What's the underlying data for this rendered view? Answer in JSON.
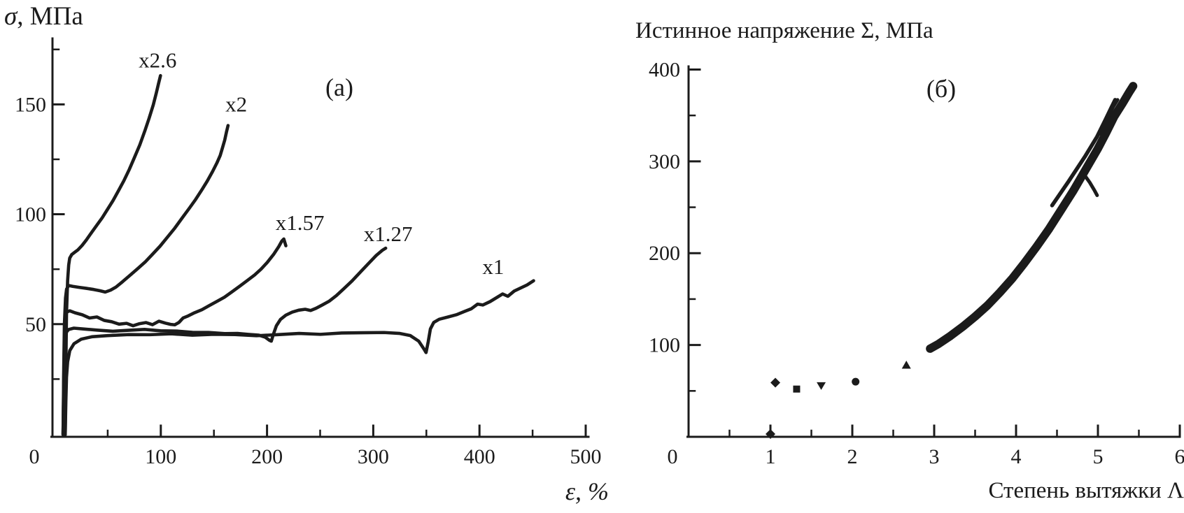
{
  "figure": {
    "background": "#ffffff",
    "ink": "#1b1b1b"
  },
  "chart_data": [
    {
      "panel": "(а)",
      "type": "line",
      "ylabel_symbol": "σ",
      "ylabel_rest": ", МПа",
      "xlabel_symbol": "ε",
      "xlabel_rest": ", %",
      "xlim": [
        0,
        500
      ],
      "ylim": [
        0,
        180
      ],
      "xticks": [
        0,
        100,
        200,
        300,
        400,
        500
      ],
      "xticks_minor": [
        50,
        150,
        250,
        350,
        450
      ],
      "yticks": [
        50,
        100,
        150
      ],
      "yticks_minor": [
        25,
        75,
        125,
        175
      ],
      "grid": false,
      "series": [
        {
          "name": "x2.6",
          "label_at": [
            97,
            170
          ],
          "points": [
            [
              10,
              0
            ],
            [
              10.5,
              30
            ],
            [
              11,
              55
            ],
            [
              12,
              70
            ],
            [
              13,
              77
            ],
            [
              14,
              80
            ],
            [
              16,
              81.5
            ],
            [
              19,
              82.5
            ],
            [
              22,
              83.5
            ],
            [
              26,
              85.5
            ],
            [
              30,
              88
            ],
            [
              35,
              91.5
            ],
            [
              40,
              95
            ],
            [
              45,
              98.5
            ],
            [
              50,
              102.5
            ],
            [
              55,
              106.5
            ],
            [
              60,
              111
            ],
            [
              65,
              115.5
            ],
            [
              70,
              120.5
            ],
            [
              75,
              126
            ],
            [
              80,
              131.5
            ],
            [
              85,
              138
            ],
            [
              89,
              143.5
            ],
            [
              93,
              149.5
            ],
            [
              96,
              155
            ],
            [
              98,
              159
            ],
            [
              100,
              163
            ]
          ]
        },
        {
          "name": "x2",
          "label_at": [
            171,
            150
          ],
          "points": [
            [
              8,
              0
            ],
            [
              8.5,
              30
            ],
            [
              9,
              50
            ],
            [
              10,
              62
            ],
            [
              11,
              66
            ],
            [
              13,
              67.5
            ],
            [
              17,
              67
            ],
            [
              23,
              66.5
            ],
            [
              30,
              66
            ],
            [
              37,
              65.5
            ],
            [
              43,
              65
            ],
            [
              48,
              64.5
            ],
            [
              53,
              65.5
            ],
            [
              58,
              67
            ],
            [
              64,
              69.5
            ],
            [
              71,
              72.5
            ],
            [
              78,
              75.5
            ],
            [
              85,
              78.5
            ],
            [
              92,
              82
            ],
            [
              99,
              85.5
            ],
            [
              106,
              89.5
            ],
            [
              113,
              93.5
            ],
            [
              120,
              98
            ],
            [
              127,
              102.5
            ],
            [
              133,
              106.5
            ],
            [
              139,
              111
            ],
            [
              144,
              115
            ],
            [
              149,
              119.5
            ],
            [
              153,
              123.5
            ],
            [
              156,
              127
            ],
            [
              158,
              130.5
            ],
            [
              160,
              134
            ],
            [
              161.5,
              137.5
            ],
            [
              163,
              140.5
            ]
          ]
        },
        {
          "name": "x1.57",
          "label_at": [
            231,
            96
          ],
          "points": [
            [
              8,
              0
            ],
            [
              8.5,
              25
            ],
            [
              9,
              42
            ],
            [
              10,
              52
            ],
            [
              11,
              55.5
            ],
            [
              14,
              56
            ],
            [
              19,
              55
            ],
            [
              26,
              54
            ],
            [
              33,
              52.5
            ],
            [
              40,
              53
            ],
            [
              47,
              51.5
            ],
            [
              54,
              51
            ],
            [
              61,
              50
            ],
            [
              68,
              50.5
            ],
            [
              74,
              49.5
            ],
            [
              80,
              50.5
            ],
            [
              86,
              51
            ],
            [
              92,
              50
            ],
            [
              98,
              51.5
            ],
            [
              104,
              50.5
            ],
            [
              109,
              49.8
            ],
            [
              113,
              49.5
            ],
            [
              117,
              50.5
            ],
            [
              121,
              52.5
            ],
            [
              126,
              53.5
            ],
            [
              132,
              55
            ],
            [
              139,
              56.5
            ],
            [
              146,
              58.5
            ],
            [
              153,
              60.5
            ],
            [
              160,
              62.5
            ],
            [
              167,
              65
            ],
            [
              174,
              67.5
            ],
            [
              181,
              70
            ],
            [
              188,
              72.5
            ],
            [
              194,
              75
            ],
            [
              200,
              78
            ],
            [
              206,
              81.5
            ],
            [
              211,
              85
            ],
            [
              214,
              87.5
            ],
            [
              216,
              88.5
            ],
            [
              218,
              85.5
            ]
          ]
        },
        {
          "name": "x1.27",
          "label_at": [
            314,
            91
          ],
          "points": [
            [
              8,
              0
            ],
            [
              8.5,
              20
            ],
            [
              9,
              35
            ],
            [
              10,
              44
            ],
            [
              11,
              46.5
            ],
            [
              13,
              47.5
            ],
            [
              18,
              48
            ],
            [
              28,
              47.5
            ],
            [
              40,
              47
            ],
            [
              55,
              46.5
            ],
            [
              70,
              47
            ],
            [
              85,
              47.5
            ],
            [
              100,
              47
            ],
            [
              115,
              47
            ],
            [
              130,
              46.5
            ],
            [
              145,
              46.5
            ],
            [
              160,
              46
            ],
            [
              172,
              46
            ],
            [
              182,
              45.5
            ],
            [
              192,
              45
            ],
            [
              198,
              44
            ],
            [
              202,
              42.5
            ],
            [
              204,
              42
            ],
            [
              206,
              45
            ],
            [
              209,
              49
            ],
            [
              213,
              52
            ],
            [
              218,
              54
            ],
            [
              224,
              55.5
            ],
            [
              230,
              56.5
            ],
            [
              236,
              57
            ],
            [
              241,
              56.5
            ],
            [
              246,
              57.5
            ],
            [
              252,
              59
            ],
            [
              258,
              60.5
            ],
            [
              265,
              63
            ],
            [
              272,
              66
            ],
            [
              280,
              69.5
            ],
            [
              288,
              73.5
            ],
            [
              296,
              77.5
            ],
            [
              303,
              81
            ],
            [
              309,
              83.5
            ],
            [
              312,
              84.5
            ]
          ]
        },
        {
          "name": "x1",
          "label_at": [
            413,
            76
          ],
          "points": [
            [
              10,
              0
            ],
            [
              10.5,
              15
            ],
            [
              11,
              26
            ],
            [
              12,
              33
            ],
            [
              14,
              38
            ],
            [
              18,
              41
            ],
            [
              25,
              43
            ],
            [
              35,
              44
            ],
            [
              50,
              44.5
            ],
            [
              70,
              45
            ],
            [
              90,
              45
            ],
            [
              110,
              45.5
            ],
            [
              130,
              45
            ],
            [
              150,
              45.5
            ],
            [
              170,
              45.5
            ],
            [
              190,
              45
            ],
            [
              210,
              45.5
            ],
            [
              230,
              46
            ],
            [
              250,
              45.5
            ],
            [
              270,
              46
            ],
            [
              290,
              46
            ],
            [
              310,
              46
            ],
            [
              325,
              45.5
            ],
            [
              335,
              44.5
            ],
            [
              343,
              42
            ],
            [
              348,
              38.5
            ],
            [
              350,
              37
            ],
            [
              352,
              42
            ],
            [
              354,
              48
            ],
            [
              357,
              51
            ],
            [
              362,
              52.5
            ],
            [
              370,
              53.5
            ],
            [
              378,
              54.5
            ],
            [
              386,
              56
            ],
            [
              392,
              57
            ],
            [
              398,
              59
            ],
            [
              403,
              58.5
            ],
            [
              410,
              60
            ],
            [
              417,
              62
            ],
            [
              422,
              63.5
            ],
            [
              427,
              62.5
            ],
            [
              433,
              65
            ],
            [
              439,
              66.5
            ],
            [
              445,
              68
            ],
            [
              451,
              70
            ]
          ]
        }
      ]
    },
    {
      "panel": "(б)",
      "type": "scatter",
      "title": "Истинное напряжение Σ, МПа",
      "xlabel": "Степень вытяжки Λ",
      "xlim": [
        0,
        6
      ],
      "ylim": [
        0,
        420
      ],
      "xticks": [
        0,
        1,
        2,
        3,
        4,
        5,
        6
      ],
      "xticks_minor": [
        0.5,
        1.5,
        2.5,
        3.5,
        4.5,
        5.5
      ],
      "yticks": [
        100,
        200,
        300,
        400
      ],
      "yticks_minor": [
        50,
        150,
        250,
        350
      ],
      "grid": false,
      "markers": [
        {
          "shape": "diamond",
          "x": 1.0,
          "y": 3
        },
        {
          "shape": "diamond",
          "x": 1.06,
          "y": 59
        },
        {
          "shape": "square",
          "x": 1.32,
          "y": 52
        },
        {
          "shape": "triangle-down",
          "x": 1.62,
          "y": 56
        },
        {
          "shape": "circle",
          "x": 2.04,
          "y": 60
        },
        {
          "shape": "triangle-up",
          "x": 2.66,
          "y": 78
        }
      ],
      "band": {
        "main": [
          [
            2.95,
            96
          ],
          [
            3.05,
            101
          ],
          [
            3.2,
            110
          ],
          [
            3.35,
            120
          ],
          [
            3.5,
            131
          ],
          [
            3.65,
            143
          ],
          [
            3.8,
            157
          ],
          [
            3.95,
            172
          ],
          [
            4.1,
            189
          ],
          [
            4.25,
            207
          ],
          [
            4.4,
            226
          ],
          [
            4.55,
            247
          ],
          [
            4.7,
            268
          ],
          [
            4.85,
            291
          ],
          [
            5.0,
            314
          ],
          [
            5.1,
            331
          ],
          [
            5.2,
            349
          ],
          [
            5.3,
            363
          ],
          [
            5.38,
            375
          ],
          [
            5.43,
            382
          ]
        ],
        "strand": [
          [
            4.44,
            252
          ],
          [
            4.64,
            278
          ],
          [
            4.84,
            305
          ],
          [
            4.99,
            327
          ],
          [
            5.09,
            345
          ],
          [
            5.16,
            358
          ],
          [
            5.21,
            367
          ]
        ],
        "tip_strand": [
          [
            5.02,
            330
          ],
          [
            5.12,
            348
          ],
          [
            5.19,
            360
          ],
          [
            5.24,
            367
          ]
        ],
        "spur": [
          [
            4.82,
            287
          ],
          [
            4.9,
            277
          ],
          [
            4.96,
            268
          ],
          [
            4.99,
            263
          ]
        ]
      }
    }
  ]
}
